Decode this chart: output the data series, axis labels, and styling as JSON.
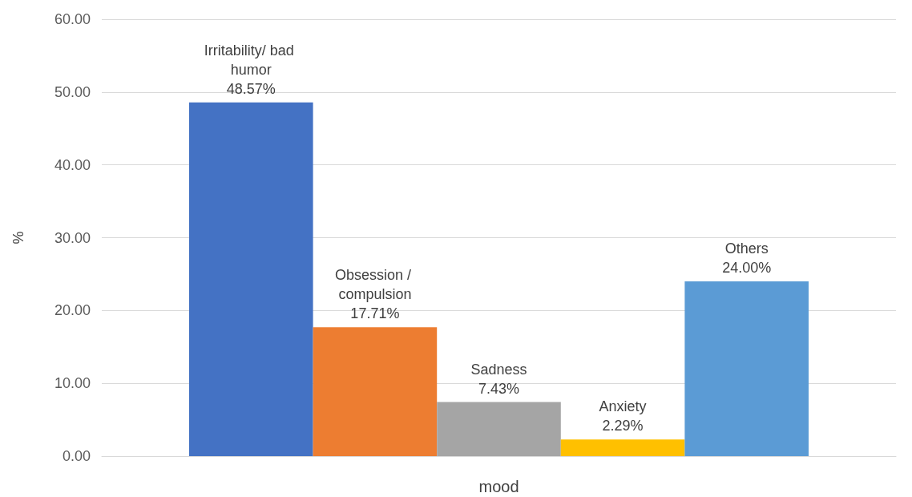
{
  "chart_data": {
    "type": "bar",
    "ylabel": "%",
    "categories": [
      "mood"
    ],
    "series": [
      {
        "name": "Irritability/ bad humor",
        "color": "#4472c4",
        "values": [
          48.57
        ],
        "value_labels": [
          "48.57%"
        ]
      },
      {
        "name": "Obsession / compulsion",
        "color": "#ed7d31",
        "values": [
          17.71
        ],
        "value_labels": [
          "17.71%"
        ]
      },
      {
        "name": "Sadness",
        "color": "#a5a5a5",
        "values": [
          7.43
        ],
        "value_labels": [
          "7.43%"
        ]
      },
      {
        "name": "Anxiety",
        "color": "#ffc000",
        "values": [
          2.29
        ],
        "value_labels": [
          "2.29%"
        ]
      },
      {
        "name": "Others",
        "color": "#5b9bd5",
        "values": [
          24.0
        ],
        "value_labels": [
          "24.00%"
        ]
      }
    ],
    "ylim": [
      0,
      60
    ],
    "yticks": [
      {
        "value": 0,
        "label": "0.00"
      },
      {
        "value": 10,
        "label": "10.00"
      },
      {
        "value": 20,
        "label": "20.00"
      },
      {
        "value": 30,
        "label": "30.00"
      },
      {
        "value": 40,
        "label": "40.00"
      },
      {
        "value": 50,
        "label": "50.00"
      },
      {
        "value": 60,
        "label": "60.00"
      }
    ],
    "grid": "y",
    "legend": false
  }
}
